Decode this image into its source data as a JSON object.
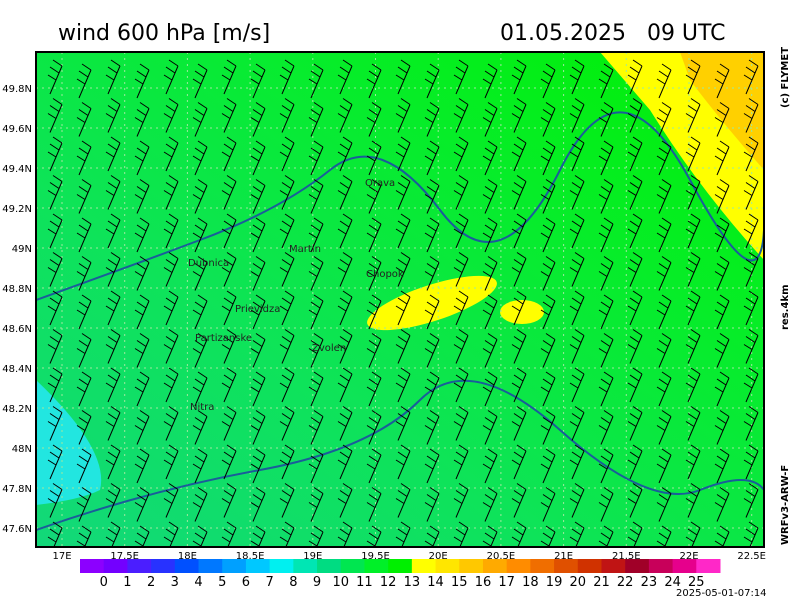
{
  "header": {
    "title": "wind 600 hPa [m/s]",
    "datetime": "01.05.2025   09 UTC"
  },
  "side": {
    "copyright": "(c) FLYMET",
    "resolution": "res.4km",
    "model": "WRFv3-ARW-F"
  },
  "footer": {
    "timestamp": "2025-05-01-07:14"
  },
  "map": {
    "lat_labels": [
      "49.8N",
      "49.6N",
      "49.4N",
      "49.2N",
      "49N",
      "48.8N",
      "48.6N",
      "48.4N",
      "48.2N",
      "48N",
      "47.8N",
      "47.6N"
    ],
    "lon_labels": [
      "17E",
      "17.5E",
      "18E",
      "18.5E",
      "19E",
      "19.5E",
      "20E",
      "20.5E",
      "21E",
      "21.5E",
      "22E",
      "22.5E"
    ],
    "places": [
      "Orava",
      "Martin",
      "Dubnica",
      "Chopok",
      "Prievidza",
      "Partizanske",
      "Zvolen",
      "Nitra"
    ]
  },
  "colorbar": {
    "labels": [
      "0",
      "1",
      "2",
      "3",
      "4",
      "5",
      "6",
      "7",
      "8",
      "9",
      "10",
      "11",
      "12",
      "13",
      "14",
      "15",
      "16",
      "17",
      "18",
      "19",
      "20",
      "21",
      "22",
      "23",
      "24",
      "25"
    ],
    "colors": [
      "#8c00ff",
      "#7300ff",
      "#4b1eff",
      "#2832ff",
      "#0050ff",
      "#0078ff",
      "#00a0ff",
      "#00c8ff",
      "#00f0f0",
      "#00e6b4",
      "#00dc82",
      "#00e650",
      "#00f028",
      "#00f000",
      "#ffff00",
      "#ffe600",
      "#ffc800",
      "#ffaa00",
      "#ff8c00",
      "#f06e00",
      "#e05000",
      "#d03200",
      "#c01414",
      "#a00028",
      "#c8005a",
      "#e6008c",
      "#ff28c8"
    ]
  }
}
